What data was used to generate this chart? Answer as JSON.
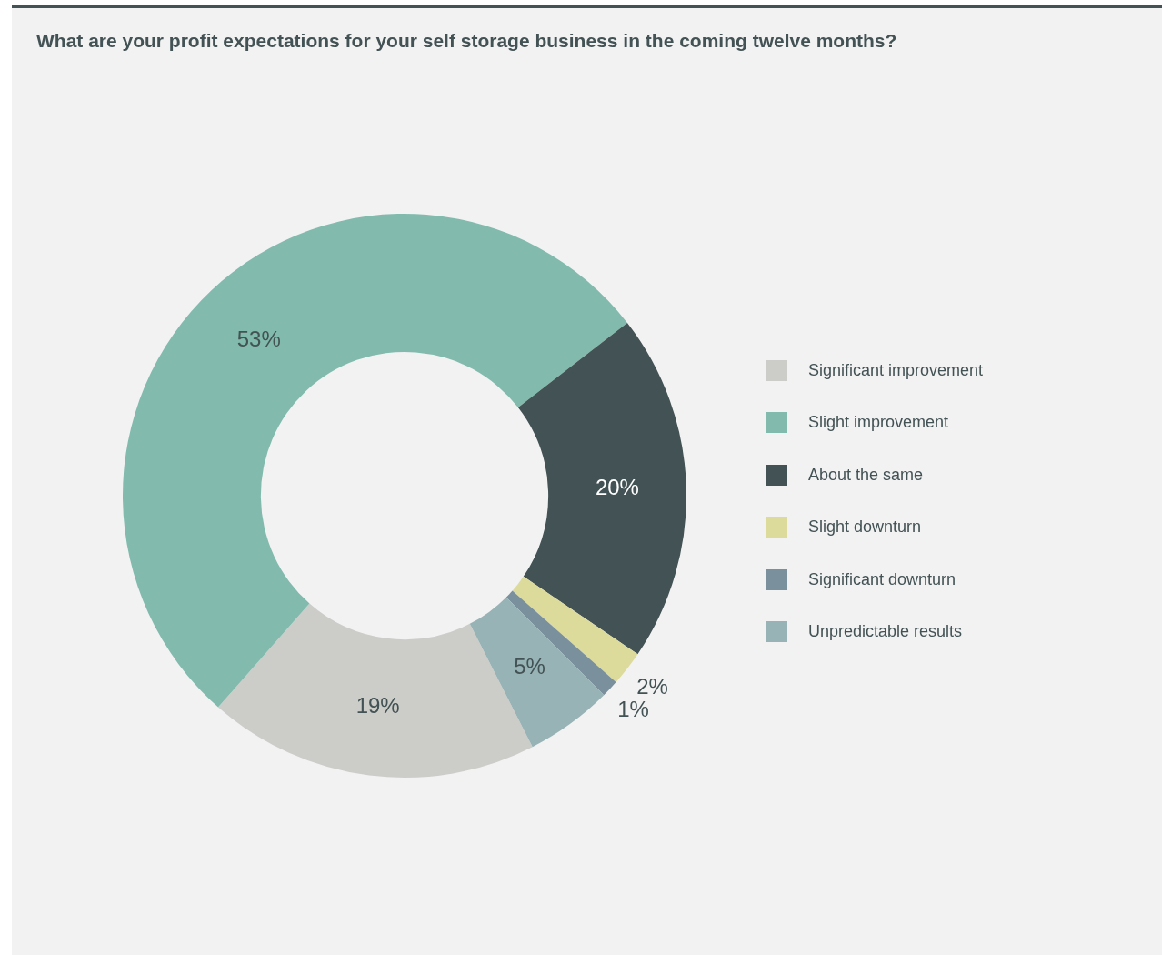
{
  "chart_data": {
    "type": "donut",
    "title": "What are your profit expectations for your self storage business in the coming twelve months?",
    "categories": [
      "Significant improvement",
      "Slight improvement",
      "About the same",
      "Slight downturn",
      "Significant downturn",
      "Unpredictable results"
    ],
    "values": [
      19,
      53,
      20,
      2,
      1,
      5
    ],
    "colors": [
      "#cccdc9",
      "#82bbad",
      "#435254",
      "#dcdb9b",
      "#7a909c",
      "#97b3b5"
    ],
    "value_labels": [
      "19%",
      "53%",
      "20%",
      "2%",
      "1%",
      "5%"
    ],
    "legend": "right"
  }
}
